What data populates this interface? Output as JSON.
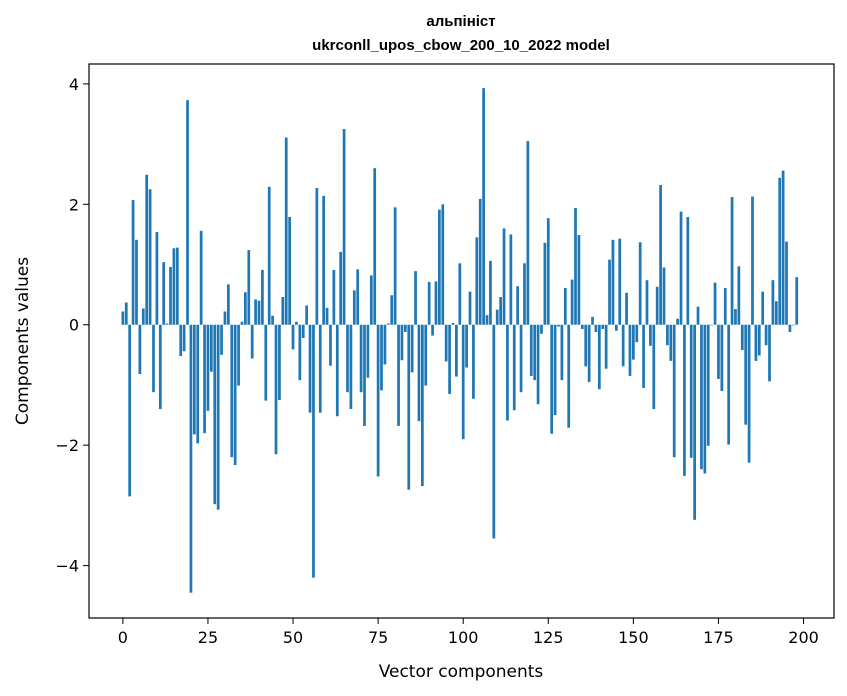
{
  "chart_data": {
    "type": "bar",
    "title_line1": "альпініст",
    "title_line2": "ukrconll_upos_cbow_200_10_2022 model",
    "xlabel": "Vector components",
    "ylabel": "Components values",
    "xlim": [
      -9.95,
      208.95
    ],
    "ylim": [
      -4.87,
      4.33
    ],
    "xticks": [
      0,
      25,
      50,
      75,
      100,
      125,
      150,
      175,
      200
    ],
    "yticks": [
      -4,
      -2,
      0,
      2,
      4
    ],
    "xtick_labels": [
      "0",
      "25",
      "50",
      "75",
      "100",
      "125",
      "150",
      "175",
      "200"
    ],
    "ytick_labels": [
      "−4",
      "−2",
      "0",
      "2",
      "4"
    ],
    "bar_color": "#1f77b4",
    "grid": false,
    "values": [
      0.22,
      0.37,
      -2.85,
      2.07,
      1.41,
      -0.82,
      0.27,
      2.49,
      2.25,
      -1.12,
      1.54,
      -1.4,
      1.04,
      0.02,
      0.96,
      1.27,
      1.28,
      -0.52,
      -0.44,
      3.73,
      -4.45,
      -1.82,
      -1.97,
      1.56,
      -1.8,
      -1.43,
      -0.78,
      -2.98,
      -3.07,
      -0.5,
      0.22,
      0.67,
      -2.2,
      -2.33,
      -1.01,
      0.05,
      0.54,
      1.24,
      -0.56,
      0.42,
      0.4,
      0.91,
      -1.26,
      2.29,
      0.15,
      -2.15,
      -1.25,
      0.46,
      3.11,
      1.79,
      -0.41,
      0.05,
      -0.92,
      -0.22,
      0.32,
      -1.46,
      -4.2,
      2.27,
      -1.46,
      2.14,
      0.28,
      -0.68,
      0.91,
      -1.52,
      1.21,
      3.25,
      -1.12,
      -1.4,
      0.57,
      0.92,
      -1.12,
      -1.68,
      -0.88,
      0.82,
      2.6,
      -2.52,
      -1.09,
      -0.66,
      0.02,
      0.49,
      1.95,
      -1.68,
      -0.59,
      -0.12,
      -2.74,
      -0.79,
      0.89,
      -1.6,
      -2.68,
      -1.01,
      0.71,
      -0.18,
      0.72,
      1.91,
      2.0,
      -0.61,
      -1.15,
      0.03,
      -0.86,
      1.02,
      -1.9,
      -0.71,
      0.55,
      -1.23,
      1.45,
      2.09,
      3.93,
      0.16,
      1.06,
      -3.55,
      0.25,
      0.46,
      1.6,
      -1.59,
      1.5,
      -1.42,
      0.64,
      -1.12,
      1.02,
      3.05,
      -0.85,
      -0.92,
      -1.32,
      -0.15,
      1.36,
      1.77,
      -1.81,
      -1.5,
      -0.03,
      -0.92,
      0.61,
      -1.71,
      0.75,
      1.94,
      1.49,
      -0.07,
      -0.69,
      -0.95,
      0.13,
      -0.12,
      -1.07,
      -0.07,
      -0.73,
      1.08,
      1.41,
      -0.1,
      1.43,
      -0.69,
      0.53,
      -0.85,
      -0.58,
      -0.29,
      1.37,
      -1.05,
      0.74,
      -0.35,
      -1.4,
      0.63,
      2.32,
      0.95,
      -0.34,
      -0.6,
      -2.2,
      0.1,
      1.88,
      -2.51,
      1.79,
      -2.21,
      -3.24,
      0.3,
      -2.4,
      -2.47,
      -2.01,
      0.0,
      0.7,
      -0.9,
      -1.1,
      0.61,
      -1.99,
      2.12,
      0.26,
      0.97,
      -0.42,
      -1.66,
      -2.29,
      2.13,
      -0.6,
      -0.51,
      0.55,
      -0.34,
      -0.94,
      0.74,
      0.39,
      2.44,
      2.56,
      1.38,
      -0.12,
      0.0,
      0.79
    ]
  }
}
